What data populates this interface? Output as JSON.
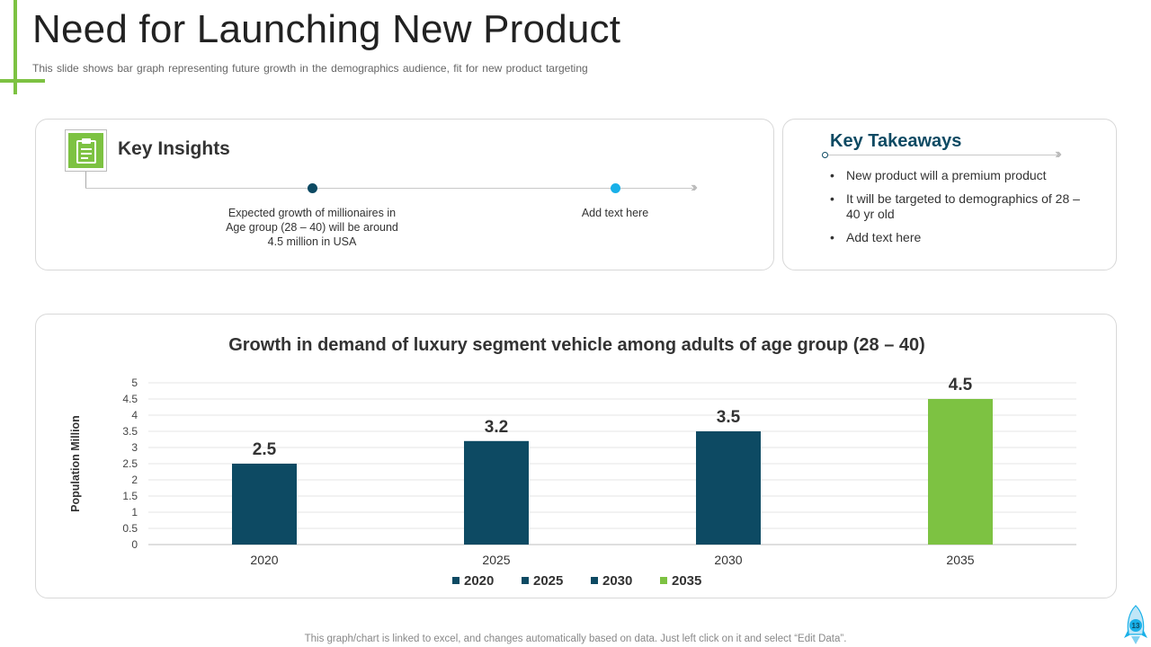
{
  "header": {
    "title": "Need for Launching New Product",
    "subtitle": "This slide shows bar graph representing future growth in the demographics audience, fit for new product targeting"
  },
  "insights": {
    "title": "Key Insights",
    "icon": "clipboard-icon",
    "items": [
      "Expected growth of millionaires in Age group (28 – 40) will be around 4.5 million in USA",
      "Add text here"
    ],
    "colors": {
      "dot1": "#0d4a63",
      "dot2": "#19b0e8"
    }
  },
  "takeaways": {
    "title": "Key Takeaways",
    "items": [
      "New product will a premium product",
      "It will be targeted to demographics of 28 – 40 yr old",
      "Add text here"
    ]
  },
  "chart_data": {
    "type": "bar",
    "title": "Growth in demand of luxury segment vehicle among adults of age group (28 – 40)",
    "xlabel": "",
    "ylabel": "Population Million",
    "categories": [
      "2020",
      "2025",
      "2030",
      "2035"
    ],
    "values": [
      2.5,
      3.2,
      3.5,
      4.5
    ],
    "data_labels": [
      "2.5",
      "3.2",
      "3.5",
      "4.5"
    ],
    "colors": [
      "#0d4a63",
      "#0d4a63",
      "#0d4a63",
      "#7dc242"
    ],
    "ylim": [
      0,
      5
    ],
    "yticks": [
      "0",
      "0.5",
      "1",
      "1.5",
      "2",
      "2.5",
      "3",
      "3.5",
      "4",
      "4.5",
      "5"
    ],
    "grid": true,
    "legend": [
      "2020",
      "2025",
      "2030",
      "2035"
    ],
    "legend_position": "bottom"
  },
  "footer": {
    "note": "This graph/chart is linked to excel, and changes automatically based on data. Just left click on it and select “Edit Data”.",
    "page_number": "13"
  },
  "theme": {
    "accent_green": "#7dc242",
    "navy": "#0d4a63"
  }
}
